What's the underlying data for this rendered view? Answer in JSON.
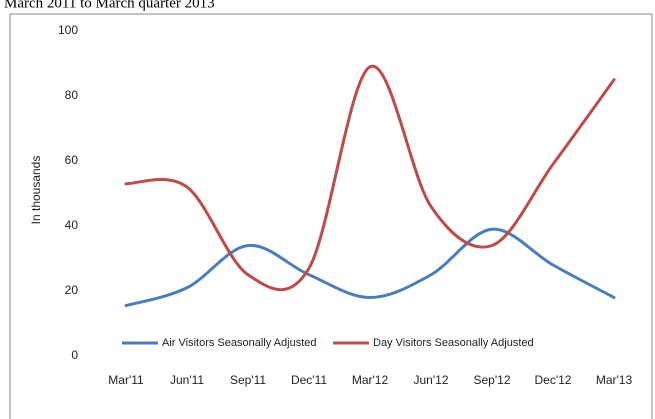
{
  "chart_data": {
    "type": "line",
    "title": "March 2011 to March quarter 2013",
    "y_label": "In thousands",
    "categories": [
      "Mar'11",
      "Jun'11",
      "Sep'11",
      "Dec'11",
      "Mar'12",
      "Jun'12",
      "Sep'12",
      "Dec'12",
      "Mar'13"
    ],
    "series": [
      {
        "name": "Air Visitors Seasonally Adjusted",
        "color": "#4a7ebb",
        "values": [
          15.5,
          21,
          34,
          25,
          18,
          25,
          39,
          28,
          18
        ]
      },
      {
        "name": "Day Visitors Seasonally Adjusted",
        "color": "#be4b48",
        "values": [
          53,
          52,
          25,
          27,
          89,
          46,
          34,
          59,
          85
        ]
      }
    ],
    "ylim": [
      0,
      100
    ],
    "yticks": [
      0,
      20,
      40,
      60,
      80,
      100
    ],
    "grid": false,
    "smooth": true,
    "legend": "bottom"
  }
}
